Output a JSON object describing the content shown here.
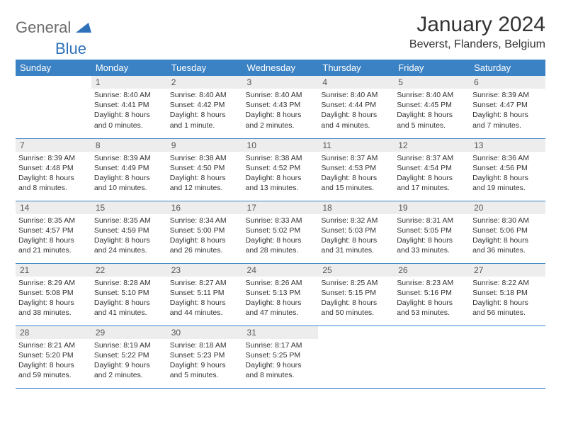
{
  "brand": {
    "general": "General",
    "blue": "Blue"
  },
  "title": "January 2024",
  "location": "Beverst, Flanders, Belgium",
  "colors": {
    "header_bg": "#3b82c4",
    "header_fg": "#ffffff",
    "daynum_bg": "#ededed",
    "border": "#3b82c4",
    "logo_blue": "#2f71b8",
    "logo_gray": "#6b6b6b"
  },
  "weekdays": [
    "Sunday",
    "Monday",
    "Tuesday",
    "Wednesday",
    "Thursday",
    "Friday",
    "Saturday"
  ],
  "weeks": [
    [
      {
        "empty": true
      },
      {
        "n": "1",
        "sunrise": "Sunrise: 8:40 AM",
        "sunset": "Sunset: 4:41 PM",
        "d1": "Daylight: 8 hours",
        "d2": "and 0 minutes."
      },
      {
        "n": "2",
        "sunrise": "Sunrise: 8:40 AM",
        "sunset": "Sunset: 4:42 PM",
        "d1": "Daylight: 8 hours",
        "d2": "and 1 minute."
      },
      {
        "n": "3",
        "sunrise": "Sunrise: 8:40 AM",
        "sunset": "Sunset: 4:43 PM",
        "d1": "Daylight: 8 hours",
        "d2": "and 2 minutes."
      },
      {
        "n": "4",
        "sunrise": "Sunrise: 8:40 AM",
        "sunset": "Sunset: 4:44 PM",
        "d1": "Daylight: 8 hours",
        "d2": "and 4 minutes."
      },
      {
        "n": "5",
        "sunrise": "Sunrise: 8:40 AM",
        "sunset": "Sunset: 4:45 PM",
        "d1": "Daylight: 8 hours",
        "d2": "and 5 minutes."
      },
      {
        "n": "6",
        "sunrise": "Sunrise: 8:39 AM",
        "sunset": "Sunset: 4:47 PM",
        "d1": "Daylight: 8 hours",
        "d2": "and 7 minutes."
      }
    ],
    [
      {
        "n": "7",
        "sunrise": "Sunrise: 8:39 AM",
        "sunset": "Sunset: 4:48 PM",
        "d1": "Daylight: 8 hours",
        "d2": "and 8 minutes."
      },
      {
        "n": "8",
        "sunrise": "Sunrise: 8:39 AM",
        "sunset": "Sunset: 4:49 PM",
        "d1": "Daylight: 8 hours",
        "d2": "and 10 minutes."
      },
      {
        "n": "9",
        "sunrise": "Sunrise: 8:38 AM",
        "sunset": "Sunset: 4:50 PM",
        "d1": "Daylight: 8 hours",
        "d2": "and 12 minutes."
      },
      {
        "n": "10",
        "sunrise": "Sunrise: 8:38 AM",
        "sunset": "Sunset: 4:52 PM",
        "d1": "Daylight: 8 hours",
        "d2": "and 13 minutes."
      },
      {
        "n": "11",
        "sunrise": "Sunrise: 8:37 AM",
        "sunset": "Sunset: 4:53 PM",
        "d1": "Daylight: 8 hours",
        "d2": "and 15 minutes."
      },
      {
        "n": "12",
        "sunrise": "Sunrise: 8:37 AM",
        "sunset": "Sunset: 4:54 PM",
        "d1": "Daylight: 8 hours",
        "d2": "and 17 minutes."
      },
      {
        "n": "13",
        "sunrise": "Sunrise: 8:36 AM",
        "sunset": "Sunset: 4:56 PM",
        "d1": "Daylight: 8 hours",
        "d2": "and 19 minutes."
      }
    ],
    [
      {
        "n": "14",
        "sunrise": "Sunrise: 8:35 AM",
        "sunset": "Sunset: 4:57 PM",
        "d1": "Daylight: 8 hours",
        "d2": "and 21 minutes."
      },
      {
        "n": "15",
        "sunrise": "Sunrise: 8:35 AM",
        "sunset": "Sunset: 4:59 PM",
        "d1": "Daylight: 8 hours",
        "d2": "and 24 minutes."
      },
      {
        "n": "16",
        "sunrise": "Sunrise: 8:34 AM",
        "sunset": "Sunset: 5:00 PM",
        "d1": "Daylight: 8 hours",
        "d2": "and 26 minutes."
      },
      {
        "n": "17",
        "sunrise": "Sunrise: 8:33 AM",
        "sunset": "Sunset: 5:02 PM",
        "d1": "Daylight: 8 hours",
        "d2": "and 28 minutes."
      },
      {
        "n": "18",
        "sunrise": "Sunrise: 8:32 AM",
        "sunset": "Sunset: 5:03 PM",
        "d1": "Daylight: 8 hours",
        "d2": "and 31 minutes."
      },
      {
        "n": "19",
        "sunrise": "Sunrise: 8:31 AM",
        "sunset": "Sunset: 5:05 PM",
        "d1": "Daylight: 8 hours",
        "d2": "and 33 minutes."
      },
      {
        "n": "20",
        "sunrise": "Sunrise: 8:30 AM",
        "sunset": "Sunset: 5:06 PM",
        "d1": "Daylight: 8 hours",
        "d2": "and 36 minutes."
      }
    ],
    [
      {
        "n": "21",
        "sunrise": "Sunrise: 8:29 AM",
        "sunset": "Sunset: 5:08 PM",
        "d1": "Daylight: 8 hours",
        "d2": "and 38 minutes."
      },
      {
        "n": "22",
        "sunrise": "Sunrise: 8:28 AM",
        "sunset": "Sunset: 5:10 PM",
        "d1": "Daylight: 8 hours",
        "d2": "and 41 minutes."
      },
      {
        "n": "23",
        "sunrise": "Sunrise: 8:27 AM",
        "sunset": "Sunset: 5:11 PM",
        "d1": "Daylight: 8 hours",
        "d2": "and 44 minutes."
      },
      {
        "n": "24",
        "sunrise": "Sunrise: 8:26 AM",
        "sunset": "Sunset: 5:13 PM",
        "d1": "Daylight: 8 hours",
        "d2": "and 47 minutes."
      },
      {
        "n": "25",
        "sunrise": "Sunrise: 8:25 AM",
        "sunset": "Sunset: 5:15 PM",
        "d1": "Daylight: 8 hours",
        "d2": "and 50 minutes."
      },
      {
        "n": "26",
        "sunrise": "Sunrise: 8:23 AM",
        "sunset": "Sunset: 5:16 PM",
        "d1": "Daylight: 8 hours",
        "d2": "and 53 minutes."
      },
      {
        "n": "27",
        "sunrise": "Sunrise: 8:22 AM",
        "sunset": "Sunset: 5:18 PM",
        "d1": "Daylight: 8 hours",
        "d2": "and 56 minutes."
      }
    ],
    [
      {
        "n": "28",
        "sunrise": "Sunrise: 8:21 AM",
        "sunset": "Sunset: 5:20 PM",
        "d1": "Daylight: 8 hours",
        "d2": "and 59 minutes."
      },
      {
        "n": "29",
        "sunrise": "Sunrise: 8:19 AM",
        "sunset": "Sunset: 5:22 PM",
        "d1": "Daylight: 9 hours",
        "d2": "and 2 minutes."
      },
      {
        "n": "30",
        "sunrise": "Sunrise: 8:18 AM",
        "sunset": "Sunset: 5:23 PM",
        "d1": "Daylight: 9 hours",
        "d2": "and 5 minutes."
      },
      {
        "n": "31",
        "sunrise": "Sunrise: 8:17 AM",
        "sunset": "Sunset: 5:25 PM",
        "d1": "Daylight: 9 hours",
        "d2": "and 8 minutes."
      },
      {
        "empty": true
      },
      {
        "empty": true
      },
      {
        "empty": true
      }
    ]
  ]
}
